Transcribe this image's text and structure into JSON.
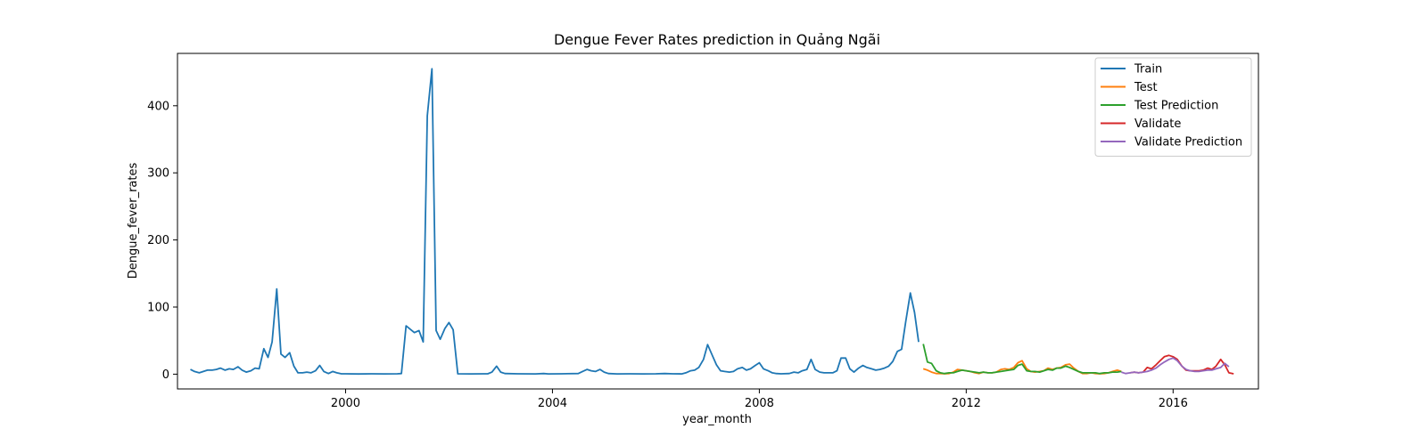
{
  "chart_data": {
    "type": "line",
    "title": "Dengue Fever Rates prediction in Quảng Ngãi",
    "xlabel": "year_month",
    "ylabel": "Dengue_fever_rates",
    "xlim": [
      1996.75,
      2017.65
    ],
    "ylim": [
      -22,
      478
    ],
    "x_ticks": [
      2000,
      2004,
      2008,
      2012,
      2016
    ],
    "x_tick_labels": [
      "2000",
      "2004",
      "2008",
      "2012",
      "2016"
    ],
    "y_ticks": [
      0,
      100,
      200,
      300,
      400
    ],
    "y_tick_labels": [
      "0",
      "100",
      "200",
      "300",
      "400"
    ],
    "grid": false,
    "legend": "top-right",
    "series": [
      {
        "name": "Train",
        "color": "#1f77b4",
        "points": [
          [
            1997.0,
            7
          ],
          [
            1997.08,
            4
          ],
          [
            1997.17,
            2
          ],
          [
            1997.25,
            4
          ],
          [
            1997.33,
            6
          ],
          [
            1997.42,
            6
          ],
          [
            1997.5,
            7
          ],
          [
            1997.58,
            9
          ],
          [
            1997.67,
            6
          ],
          [
            1997.75,
            8
          ],
          [
            1997.83,
            7
          ],
          [
            1997.92,
            11
          ],
          [
            1998.0,
            6
          ],
          [
            1998.08,
            3
          ],
          [
            1998.17,
            5
          ],
          [
            1998.25,
            9
          ],
          [
            1998.33,
            8
          ],
          [
            1998.42,
            38
          ],
          [
            1998.5,
            25
          ],
          [
            1998.58,
            48
          ],
          [
            1998.67,
            127
          ],
          [
            1998.75,
            30
          ],
          [
            1998.83,
            25
          ],
          [
            1998.92,
            32
          ],
          [
            1999.0,
            12
          ],
          [
            1999.08,
            2
          ],
          [
            1999.17,
            2
          ],
          [
            1999.25,
            3
          ],
          [
            1999.33,
            2
          ],
          [
            1999.42,
            5
          ],
          [
            1999.5,
            13
          ],
          [
            1999.58,
            4
          ],
          [
            1999.67,
            1
          ],
          [
            1999.75,
            4
          ],
          [
            1999.83,
            2
          ],
          [
            1999.92,
            0.5
          ],
          [
            2000.0,
            0.5
          ],
          [
            2000.25,
            0.3
          ],
          [
            2000.5,
            0.6
          ],
          [
            2000.75,
            0.4
          ],
          [
            2001.0,
            0.5
          ],
          [
            2001.08,
            1
          ],
          [
            2001.17,
            72
          ],
          [
            2001.25,
            67
          ],
          [
            2001.33,
            62
          ],
          [
            2001.42,
            65
          ],
          [
            2001.5,
            48
          ],
          [
            2001.58,
            385
          ],
          [
            2001.67,
            455
          ],
          [
            2001.75,
            65
          ],
          [
            2001.83,
            52
          ],
          [
            2001.92,
            68
          ],
          [
            2002.0,
            77
          ],
          [
            2002.08,
            66
          ],
          [
            2002.17,
            0.5
          ],
          [
            2002.42,
            0.4
          ],
          [
            2002.67,
            0.6
          ],
          [
            2002.75,
            0.5
          ],
          [
            2002.83,
            3
          ],
          [
            2002.92,
            12
          ],
          [
            2003.0,
            3
          ],
          [
            2003.08,
            1
          ],
          [
            2003.33,
            0.5
          ],
          [
            2003.67,
            0.4
          ],
          [
            2003.83,
            1
          ],
          [
            2003.92,
            0.4
          ],
          [
            2004.17,
            0.5
          ],
          [
            2004.5,
            1
          ],
          [
            2004.58,
            4
          ],
          [
            2004.67,
            7
          ],
          [
            2004.75,
            5
          ],
          [
            2004.83,
            4
          ],
          [
            2004.92,
            7
          ],
          [
            2005.0,
            3
          ],
          [
            2005.08,
            1
          ],
          [
            2005.25,
            0.4
          ],
          [
            2005.5,
            0.6
          ],
          [
            2005.75,
            0.4
          ],
          [
            2006.0,
            0.5
          ],
          [
            2006.17,
            1
          ],
          [
            2006.33,
            0.5
          ],
          [
            2006.5,
            0.4
          ],
          [
            2006.58,
            2
          ],
          [
            2006.67,
            5
          ],
          [
            2006.75,
            6
          ],
          [
            2006.83,
            10
          ],
          [
            2006.92,
            22
          ],
          [
            2007.0,
            44
          ],
          [
            2007.08,
            30
          ],
          [
            2007.17,
            14
          ],
          [
            2007.25,
            5
          ],
          [
            2007.33,
            4
          ],
          [
            2007.42,
            3
          ],
          [
            2007.5,
            4
          ],
          [
            2007.58,
            8
          ],
          [
            2007.67,
            10
          ],
          [
            2007.75,
            6
          ],
          [
            2007.83,
            8
          ],
          [
            2007.92,
            13
          ],
          [
            2008.0,
            17
          ],
          [
            2008.08,
            8
          ],
          [
            2008.17,
            5
          ],
          [
            2008.25,
            2
          ],
          [
            2008.33,
            1
          ],
          [
            2008.42,
            0.5
          ],
          [
            2008.58,
            1
          ],
          [
            2008.67,
            3
          ],
          [
            2008.75,
            2
          ],
          [
            2008.83,
            5
          ],
          [
            2008.92,
            7
          ],
          [
            2009.0,
            22
          ],
          [
            2009.08,
            7
          ],
          [
            2009.17,
            3
          ],
          [
            2009.25,
            2
          ],
          [
            2009.33,
            2
          ],
          [
            2009.42,
            2
          ],
          [
            2009.5,
            5
          ],
          [
            2009.58,
            24
          ],
          [
            2009.67,
            24
          ],
          [
            2009.75,
            8
          ],
          [
            2009.83,
            3
          ],
          [
            2009.92,
            9
          ],
          [
            2010.0,
            13
          ],
          [
            2010.08,
            10
          ],
          [
            2010.17,
            8
          ],
          [
            2010.25,
            6
          ],
          [
            2010.33,
            7
          ],
          [
            2010.42,
            9
          ],
          [
            2010.5,
            12
          ],
          [
            2010.58,
            19
          ],
          [
            2010.67,
            34
          ],
          [
            2010.75,
            37
          ],
          [
            2010.83,
            78
          ],
          [
            2010.92,
            121
          ],
          [
            2011.0,
            92
          ],
          [
            2011.08,
            48
          ]
        ]
      },
      {
        "name": "Test",
        "color": "#ff7f0e",
        "points": [
          [
            2011.17,
            8
          ],
          [
            2011.25,
            6
          ],
          [
            2011.33,
            3
          ],
          [
            2011.42,
            1
          ],
          [
            2011.5,
            1
          ],
          [
            2011.58,
            0.5
          ],
          [
            2011.67,
            1
          ],
          [
            2011.75,
            3
          ],
          [
            2011.83,
            7
          ],
          [
            2011.92,
            6
          ],
          [
            2012.0,
            5
          ],
          [
            2012.08,
            4
          ],
          [
            2012.17,
            2
          ],
          [
            2012.25,
            1
          ],
          [
            2012.33,
            3
          ],
          [
            2012.42,
            2
          ],
          [
            2012.5,
            2
          ],
          [
            2012.58,
            3
          ],
          [
            2012.67,
            7
          ],
          [
            2012.75,
            8
          ],
          [
            2012.83,
            7
          ],
          [
            2012.92,
            10
          ],
          [
            2013.0,
            17
          ],
          [
            2013.08,
            20
          ],
          [
            2013.17,
            8
          ],
          [
            2013.25,
            4
          ],
          [
            2013.33,
            3
          ],
          [
            2013.42,
            4
          ],
          [
            2013.5,
            5
          ],
          [
            2013.58,
            9
          ],
          [
            2013.67,
            7
          ],
          [
            2013.75,
            9
          ],
          [
            2013.83,
            10
          ],
          [
            2013.92,
            14
          ],
          [
            2014.0,
            15
          ],
          [
            2014.08,
            9
          ],
          [
            2014.17,
            4
          ],
          [
            2014.25,
            1
          ],
          [
            2014.33,
            1
          ],
          [
            2014.42,
            2
          ],
          [
            2014.5,
            1
          ],
          [
            2014.58,
            0.5
          ],
          [
            2014.67,
            1
          ],
          [
            2014.75,
            2
          ],
          [
            2014.83,
            4
          ],
          [
            2014.92,
            6
          ],
          [
            2015.0,
            4
          ]
        ]
      },
      {
        "name": "Test Prediction",
        "color": "#2ca02c",
        "points": [
          [
            2011.17,
            45
          ],
          [
            2011.25,
            18
          ],
          [
            2011.33,
            16
          ],
          [
            2011.42,
            5
          ],
          [
            2011.5,
            2
          ],
          [
            2011.58,
            1
          ],
          [
            2011.67,
            2
          ],
          [
            2011.75,
            2
          ],
          [
            2011.83,
            4
          ],
          [
            2011.92,
            6
          ],
          [
            2012.0,
            5
          ],
          [
            2012.08,
            4
          ],
          [
            2012.17,
            3
          ],
          [
            2012.25,
            2
          ],
          [
            2012.33,
            3
          ],
          [
            2012.42,
            2
          ],
          [
            2012.5,
            2
          ],
          [
            2012.58,
            3
          ],
          [
            2012.67,
            4
          ],
          [
            2012.75,
            5
          ],
          [
            2012.83,
            6
          ],
          [
            2012.92,
            7
          ],
          [
            2013.0,
            13
          ],
          [
            2013.08,
            15
          ],
          [
            2013.17,
            5
          ],
          [
            2013.25,
            4
          ],
          [
            2013.33,
            4
          ],
          [
            2013.42,
            3
          ],
          [
            2013.5,
            5
          ],
          [
            2013.58,
            7
          ],
          [
            2013.67,
            6
          ],
          [
            2013.75,
            9
          ],
          [
            2013.83,
            9
          ],
          [
            2013.92,
            12
          ],
          [
            2014.0,
            10
          ],
          [
            2014.08,
            7
          ],
          [
            2014.17,
            4
          ],
          [
            2014.25,
            2
          ],
          [
            2014.33,
            2
          ],
          [
            2014.42,
            2
          ],
          [
            2014.5,
            2
          ],
          [
            2014.58,
            1
          ],
          [
            2014.67,
            2
          ],
          [
            2014.75,
            2
          ],
          [
            2014.83,
            3
          ],
          [
            2014.92,
            3
          ],
          [
            2015.0,
            4
          ]
        ]
      },
      {
        "name": "Validate",
        "color": "#d62728",
        "points": [
          [
            2015.17,
            2
          ],
          [
            2015.25,
            3
          ],
          [
            2015.33,
            2
          ],
          [
            2015.42,
            3
          ],
          [
            2015.5,
            10
          ],
          [
            2015.58,
            8
          ],
          [
            2015.67,
            14
          ],
          [
            2015.75,
            20
          ],
          [
            2015.83,
            26
          ],
          [
            2015.92,
            28
          ],
          [
            2016.0,
            26
          ],
          [
            2016.08,
            22
          ],
          [
            2016.17,
            12
          ],
          [
            2016.25,
            6
          ],
          [
            2016.33,
            5
          ],
          [
            2016.42,
            5
          ],
          [
            2016.5,
            5
          ],
          [
            2016.58,
            6
          ],
          [
            2016.67,
            9
          ],
          [
            2016.75,
            7
          ],
          [
            2016.83,
            12
          ],
          [
            2016.92,
            22
          ],
          [
            2017.0,
            14
          ],
          [
            2017.08,
            2
          ],
          [
            2017.17,
            0.5
          ]
        ]
      },
      {
        "name": "Validate Prediction",
        "color": "#9467bd",
        "points": [
          [
            2015.0,
            3
          ],
          [
            2015.08,
            1
          ],
          [
            2015.17,
            2
          ],
          [
            2015.25,
            3
          ],
          [
            2015.33,
            2
          ],
          [
            2015.42,
            3
          ],
          [
            2015.5,
            4
          ],
          [
            2015.58,
            6
          ],
          [
            2015.67,
            9
          ],
          [
            2015.75,
            14
          ],
          [
            2015.83,
            18
          ],
          [
            2015.92,
            22
          ],
          [
            2016.0,
            24
          ],
          [
            2016.08,
            20
          ],
          [
            2016.17,
            12
          ],
          [
            2016.25,
            7
          ],
          [
            2016.33,
            5
          ],
          [
            2016.42,
            4
          ],
          [
            2016.5,
            4
          ],
          [
            2016.58,
            5
          ],
          [
            2016.67,
            6
          ],
          [
            2016.75,
            6
          ],
          [
            2016.83,
            8
          ],
          [
            2016.92,
            10
          ],
          [
            2017.0,
            16
          ],
          [
            2017.08,
            11
          ]
        ]
      }
    ]
  }
}
